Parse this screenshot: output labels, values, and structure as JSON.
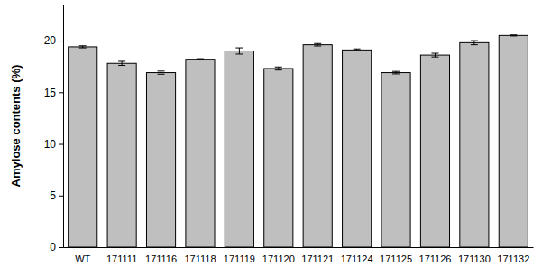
{
  "chart_data": {
    "type": "bar",
    "y_label": "Amylose contents (%)",
    "categories": [
      "WT",
      "171111",
      "171116",
      "171118",
      "171119",
      "171120",
      "171121",
      "171124",
      "171125",
      "171126",
      "171130",
      "171132"
    ],
    "values": [
      19.4,
      17.8,
      16.9,
      18.2,
      19.0,
      17.3,
      19.6,
      19.1,
      16.9,
      18.6,
      19.8,
      20.5
    ],
    "errors": [
      0.1,
      0.2,
      0.15,
      0.05,
      0.3,
      0.15,
      0.12,
      0.1,
      0.12,
      0.18,
      0.2,
      0.05
    ],
    "color": "#bfbfbf",
    "ylim": [
      0,
      23.5
    ],
    "yticks": [
      0,
      5,
      10,
      15,
      20
    ],
    "grid": false
  }
}
